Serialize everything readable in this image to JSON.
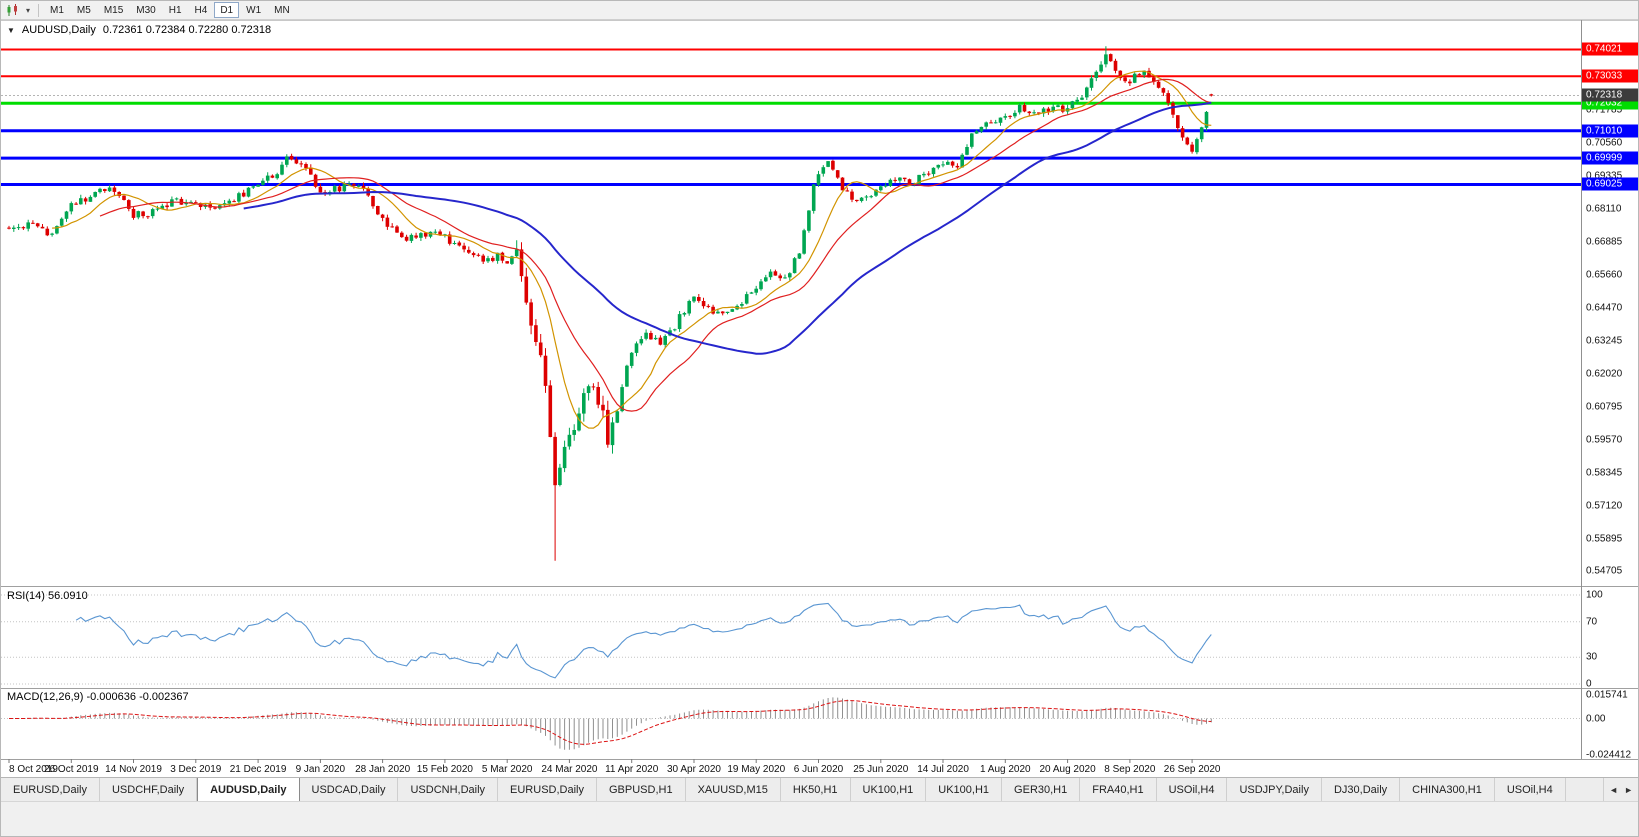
{
  "toolbar": {
    "chart_type_icon": "candlestick-chart",
    "dropdown_icon": "▾",
    "timeframes": [
      {
        "label": "M1",
        "active": false
      },
      {
        "label": "M5",
        "active": false
      },
      {
        "label": "M15",
        "active": false
      },
      {
        "label": "M30",
        "active": false
      },
      {
        "label": "H1",
        "active": false
      },
      {
        "label": "H4",
        "active": false
      },
      {
        "label": "D1",
        "active": true
      },
      {
        "label": "W1",
        "active": false
      },
      {
        "label": "MN",
        "active": false
      }
    ]
  },
  "chart_header": {
    "collapse_icon": "▼",
    "symbol": "AUDUSD,Daily",
    "ohlc": "0.72361 0.72384 0.72280 0.72318"
  },
  "price_scale": {
    "labels": [
      "0.71785",
      "0.70560",
      "0.69335",
      "0.68110",
      "0.66885",
      "0.65660",
      "0.64470",
      "0.63245",
      "0.62020",
      "0.60795",
      "0.59570",
      "0.58345",
      "0.57120",
      "0.55895",
      "0.54705"
    ],
    "current_badge": {
      "text": "0.72318",
      "bg": "#3c3c3c"
    }
  },
  "panels": {
    "rsi": {
      "title": "RSI(14) 56.0910",
      "labels": [
        "100",
        "70",
        "30",
        "0"
      ]
    },
    "macd": {
      "title": "MACD(12,26,9) -0.000636 -0.002367",
      "labels": [
        "0.015741",
        "0.00",
        "-0.024412"
      ]
    }
  },
  "date_axis": {
    "labels": [
      "8 Oct 2019",
      "26 Oct 2019",
      "14 Nov 2019",
      "3 Dec 2019",
      "21 Dec 2019",
      "9 Jan 2020",
      "28 Jan 2020",
      "15 Feb 2020",
      "5 Mar 2020",
      "24 Mar 2020",
      "11 Apr 2020",
      "30 Apr 2020",
      "19 May 2020",
      "6 Jun 2020",
      "25 Jun 2020",
      "14 Jul 2020",
      "1 Aug 2020",
      "20 Aug 2020",
      "8 Sep 2020",
      "26 Sep 2020"
    ]
  },
  "tabs": {
    "scroll_left_icon": "◄",
    "scroll_right_icon": "►",
    "items": [
      {
        "label": "EURUSD,Daily",
        "active": false
      },
      {
        "label": "USDCHF,Daily",
        "active": false
      },
      {
        "label": "AUDUSD,Daily",
        "active": true
      },
      {
        "label": "USDCAD,Daily",
        "active": false
      },
      {
        "label": "USDCNH,Daily",
        "active": false
      },
      {
        "label": "EURUSD,Daily",
        "active": false
      },
      {
        "label": "GBPUSD,H1",
        "active": false
      },
      {
        "label": "XAUUSD,M15",
        "active": false
      },
      {
        "label": "HK50,H1",
        "active": false
      },
      {
        "label": "UK100,H1",
        "active": false
      },
      {
        "label": "UK100,H1",
        "active": false
      },
      {
        "label": "GER30,H1",
        "active": false
      },
      {
        "label": "FRA40,H1",
        "active": false
      },
      {
        "label": "USOil,H4",
        "active": false
      },
      {
        "label": "USDJPY,Daily",
        "active": false
      },
      {
        "label": "DJ30,Daily",
        "active": false
      },
      {
        "label": "CHINA300,H1",
        "active": false
      },
      {
        "label": "USOil,H4",
        "active": false
      }
    ]
  },
  "colors": {
    "up": "#00a651",
    "down": "#dd0000",
    "ma_fast": "#d29400",
    "ma_mid": "#e02020",
    "ma_slow": "#2626cc",
    "rsi": "#5a96d2",
    "macd_hist": "#8f8f8f",
    "macd_signal": "#dc1414",
    "bid_line": "#b4b4b4",
    "separator": "#a0a0a0"
  },
  "chart_data": {
    "type": "candlestick",
    "symbol": "AUDUSD",
    "timeframe": "Daily",
    "num_candles": 252,
    "label_every_n_candles": 13,
    "price_axis_range": {
      "top": 0.75,
      "bottom": 0.545
    },
    "ohlc_current": {
      "open": 0.72361,
      "high": 0.72384,
      "low": 0.7228,
      "close": 0.72318
    },
    "horizontal_lines": [
      {
        "label": "0.74021",
        "price": 0.74021,
        "color": "#ff0000",
        "width": 2
      },
      {
        "label": "0.73033",
        "price": 0.73033,
        "color": "#ff0000",
        "width": 2
      },
      {
        "label": "0.72032",
        "price": 0.72032,
        "color": "#00dd00",
        "width": 3
      },
      {
        "label": "0.71010",
        "price": 0.7101,
        "color": "#0000ff",
        "width": 3
      },
      {
        "label": "0.69999",
        "price": 0.69999,
        "color": "#0000ff",
        "width": 3
      },
      {
        "label": "0.69025",
        "price": 0.69025,
        "color": "#0000ff",
        "width": 3
      }
    ],
    "close_waypoints": [
      [
        0,
        0.6735
      ],
      [
        4,
        0.676
      ],
      [
        9,
        0.6715
      ],
      [
        13,
        0.682
      ],
      [
        17,
        0.686
      ],
      [
        20,
        0.689
      ],
      [
        23,
        0.687
      ],
      [
        26,
        0.679
      ],
      [
        30,
        0.68
      ],
      [
        34,
        0.684
      ],
      [
        39,
        0.6838
      ],
      [
        43,
        0.681
      ],
      [
        47,
        0.685
      ],
      [
        52,
        0.6895
      ],
      [
        56,
        0.695
      ],
      [
        58,
        0.7
      ],
      [
        61,
        0.699
      ],
      [
        65,
        0.6865
      ],
      [
        69,
        0.689
      ],
      [
        73,
        0.6905
      ],
      [
        78,
        0.677
      ],
      [
        82,
        0.67
      ],
      [
        86,
        0.6725
      ],
      [
        91,
        0.671
      ],
      [
        95,
        0.6655
      ],
      [
        99,
        0.662
      ],
      [
        102,
        0.664
      ],
      [
        104,
        0.662
      ],
      [
        106,
        0.664
      ],
      [
        108,
        0.648
      ],
      [
        110,
        0.63
      ],
      [
        112,
        0.618
      ],
      [
        114,
        0.58
      ],
      [
        115,
        0.588
      ],
      [
        117,
        0.596
      ],
      [
        119,
        0.608
      ],
      [
        121,
        0.615
      ],
      [
        123,
        0.61
      ],
      [
        125,
        0.597
      ],
      [
        127,
        0.609
      ],
      [
        130,
        0.629
      ],
      [
        133,
        0.635
      ],
      [
        136,
        0.631
      ],
      [
        139,
        0.638
      ],
      [
        143,
        0.65
      ],
      [
        146,
        0.644
      ],
      [
        150,
        0.642
      ],
      [
        153,
        0.647
      ],
      [
        156,
        0.652
      ],
      [
        159,
        0.658
      ],
      [
        162,
        0.655
      ],
      [
        165,
        0.665
      ],
      [
        168,
        0.69
      ],
      [
        171,
        0.7
      ],
      [
        174,
        0.689
      ],
      [
        177,
        0.684
      ],
      [
        180,
        0.686
      ],
      [
        182,
        0.689
      ],
      [
        185,
        0.693
      ],
      [
        188,
        0.6905
      ],
      [
        191,
        0.6935
      ],
      [
        195,
        0.6985
      ],
      [
        198,
        0.696
      ],
      [
        201,
        0.708
      ],
      [
        204,
        0.712
      ],
      [
        208,
        0.7145
      ],
      [
        211,
        0.719
      ],
      [
        214,
        0.7165
      ],
      [
        217,
        0.7185
      ],
      [
        221,
        0.718
      ],
      [
        224,
        0.723
      ],
      [
        227,
        0.732
      ],
      [
        229,
        0.739
      ],
      [
        231,
        0.731
      ],
      [
        234,
        0.7285
      ],
      [
        236,
        0.732
      ],
      [
        238,
        0.731
      ],
      [
        240,
        0.7255
      ],
      [
        242,
        0.721
      ],
      [
        244,
        0.7105
      ],
      [
        246,
        0.704
      ],
      [
        247,
        0.7035
      ],
      [
        249,
        0.7105
      ],
      [
        250,
        0.718
      ],
      [
        251,
        0.72318
      ]
    ],
    "volatile_range": [
      106,
      127
    ],
    "spike_low": {
      "index": 114,
      "low": 0.551
    },
    "peak_high": {
      "index": 229,
      "high": 0.7414
    },
    "indicators": {
      "sma_fast": 10,
      "sma_mid": 20,
      "sma_slow": 50,
      "rsi_period": 14,
      "rsi_levels": [
        100,
        70,
        30,
        0
      ],
      "rsi_current": 56.091,
      "macd": [
        12,
        26,
        9
      ],
      "macd_current": -0.000636,
      "macd_signal_current": -0.002367,
      "macd_axis": {
        "top": 0.015741,
        "zero": 0.0,
        "bottom": -0.024412
      }
    }
  }
}
